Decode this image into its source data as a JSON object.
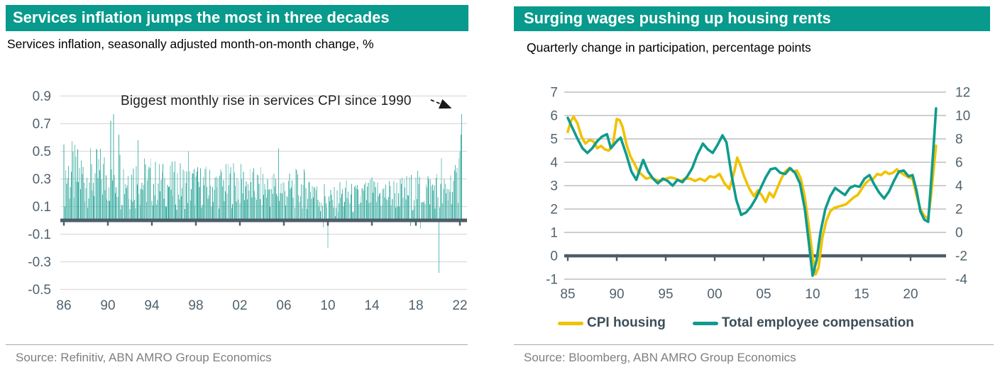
{
  "left_panel": {
    "title": "Services inflation jumps the most in three decades",
    "subtitle": "Services inflation, seasonally adjusted month-on-month change, %",
    "annotation": "Biggest monthly rise in services CPI since 1990",
    "source": "Source: Refinitiv, ABN AMRO Group Economics"
  },
  "right_panel": {
    "title": "Surging wages pushing up housing rents",
    "subtitle": "Quarterly change in participation, percentage points",
    "source": "Source: Bloomberg, ABN AMRO Group Economics"
  },
  "colors": {
    "accent_teal": "#089a8c",
    "bar_teal": "#2da79b",
    "line_teal": "#0f9b8e",
    "line_yellow": "#f0c200",
    "axis_dark": "#4d5d69",
    "tick_label": "#50626e",
    "grid_light": "#dcdcdc",
    "grid_medium": "#9c9c9c",
    "annotation_ink": "#1a1a1a"
  },
  "chart_data": [
    {
      "id": "services-inflation",
      "type": "bar",
      "title": "Services inflation jumps the most in three decades",
      "ylabel": "Services inflation, seasonally adjusted month-on-month change, %",
      "x_tick_labels": [
        "86",
        "90",
        "94",
        "98",
        "02",
        "06",
        "10",
        "14",
        "18",
        "22"
      ],
      "x_tick_years": [
        1986,
        1990,
        1994,
        1998,
        2002,
        2006,
        2010,
        2014,
        2018,
        2022
      ],
      "y_ticks": [
        0.9,
        0.7,
        0.5,
        0.3,
        0.1,
        -0.1,
        -0.3,
        -0.5
      ],
      "ylim": [
        -0.5,
        0.95
      ],
      "x_range_years": [
        1986.0,
        2022.25
      ],
      "frequency": "monthly",
      "bars_envelope_per_year": [
        [
          1986,
          0.32,
          0.26
        ],
        [
          1987,
          0.3,
          0.24
        ],
        [
          1988,
          0.3,
          0.22
        ],
        [
          1989,
          0.31,
          0.23
        ],
        [
          1990,
          0.33,
          0.26
        ],
        [
          1991,
          0.31,
          0.25
        ],
        [
          1992,
          0.28,
          0.22
        ],
        [
          1993,
          0.27,
          0.2
        ],
        [
          1994,
          0.26,
          0.18
        ],
        [
          1995,
          0.25,
          0.17
        ],
        [
          1996,
          0.25,
          0.18
        ],
        [
          1997,
          0.24,
          0.17
        ],
        [
          1998,
          0.24,
          0.16
        ],
        [
          1999,
          0.23,
          0.16
        ],
        [
          2000,
          0.24,
          0.17
        ],
        [
          2001,
          0.26,
          0.18
        ],
        [
          2002,
          0.25,
          0.16
        ],
        [
          2003,
          0.23,
          0.15
        ],
        [
          2004,
          0.22,
          0.15
        ],
        [
          2005,
          0.22,
          0.16
        ],
        [
          2006,
          0.21,
          0.14
        ],
        [
          2007,
          0.22,
          0.15
        ],
        [
          2008,
          0.23,
          0.16
        ],
        [
          2009,
          0.16,
          0.13
        ],
        [
          2010,
          0.13,
          0.11
        ],
        [
          2011,
          0.17,
          0.13
        ],
        [
          2012,
          0.15,
          0.12
        ],
        [
          2013,
          0.17,
          0.13
        ],
        [
          2014,
          0.18,
          0.13
        ],
        [
          2015,
          0.18,
          0.13
        ],
        [
          2016,
          0.19,
          0.13
        ],
        [
          2017,
          0.2,
          0.14
        ],
        [
          2018,
          0.21,
          0.15
        ],
        [
          2019,
          0.22,
          0.15
        ],
        [
          2020,
          0.18,
          0.15
        ],
        [
          2021,
          0.25,
          0.15
        ],
        [
          2022,
          0.42,
          0.18
        ]
      ],
      "notable_points": [
        [
          1990.25,
          0.72
        ],
        [
          1990.5,
          0.77
        ],
        [
          1991.0,
          0.62
        ],
        [
          1992.75,
          0.58
        ],
        [
          1997.3,
          0.5
        ],
        [
          2005.5,
          0.52
        ],
        [
          2009.6,
          -0.05
        ],
        [
          2010.0,
          -0.2
        ],
        [
          2017.5,
          -0.04
        ],
        [
          2018.4,
          -0.06
        ],
        [
          2020.05,
          -0.38
        ],
        [
          2020.3,
          0.45
        ],
        [
          2021.75,
          0.38
        ],
        [
          2021.9,
          0.45
        ],
        [
          2022.0,
          0.5
        ],
        [
          2022.08,
          0.62
        ],
        [
          2022.17,
          0.77
        ]
      ],
      "annotation": {
        "text": "Biggest monthly rise in services CPI since 1990",
        "points_to": {
          "year": 2022.17,
          "value": 0.77
        }
      },
      "noise_seed": 12.9898
    },
    {
      "id": "wages-housing-rents",
      "type": "line",
      "title": "Surging wages pushing up housing rents",
      "ylabel": "Quarterly change in participation, percentage points",
      "x_tick_labels": [
        "85",
        "90",
        "95",
        "00",
        "05",
        "10",
        "15",
        "20"
      ],
      "x_tick_years": [
        1985,
        1990,
        1995,
        2000,
        2005,
        2010,
        2015,
        2020
      ],
      "y_left_ticks": [
        7,
        6,
        5,
        4,
        3,
        2,
        1,
        0,
        -1
      ],
      "y_right_ticks": [
        12,
        10,
        8,
        6,
        4,
        2,
        0,
        -2,
        -4
      ],
      "ylim_left": [
        -1,
        7
      ],
      "ylim_right": [
        -4,
        12
      ],
      "x_range_years": [
        1985.0,
        2022.6
      ],
      "legend_position": "bottom",
      "series": [
        {
          "name": "CPI housing",
          "axis": "left",
          "color": "#f0c200",
          "points": [
            [
              1985.0,
              5.3
            ],
            [
              1985.3,
              5.75
            ],
            [
              1985.6,
              5.95
            ],
            [
              1986.0,
              5.65
            ],
            [
              1986.4,
              5.1
            ],
            [
              1986.8,
              4.8
            ],
            [
              1987.2,
              4.95
            ],
            [
              1987.6,
              4.9
            ],
            [
              1988.0,
              4.6
            ],
            [
              1988.4,
              4.7
            ],
            [
              1988.8,
              4.55
            ],
            [
              1989.2,
              4.5
            ],
            [
              1989.6,
              4.75
            ],
            [
              1990.0,
              5.85
            ],
            [
              1990.3,
              5.8
            ],
            [
              1990.6,
              5.5
            ],
            [
              1991.0,
              4.75
            ],
            [
              1991.4,
              4.25
            ],
            [
              1991.8,
              3.95
            ],
            [
              1992.2,
              3.6
            ],
            [
              1992.6,
              3.45
            ],
            [
              1993.0,
              3.3
            ],
            [
              1993.5,
              3.35
            ],
            [
              1994.0,
              3.25
            ],
            [
              1994.5,
              3.2
            ],
            [
              1995.0,
              3.3
            ],
            [
              1995.5,
              3.35
            ],
            [
              1996.0,
              3.3
            ],
            [
              1996.5,
              3.2
            ],
            [
              1997.0,
              3.3
            ],
            [
              1997.5,
              3.3
            ],
            [
              1998.0,
              3.2
            ],
            [
              1998.5,
              3.3
            ],
            [
              1999.0,
              3.2
            ],
            [
              1999.5,
              3.4
            ],
            [
              2000.0,
              3.35
            ],
            [
              2000.5,
              3.5
            ],
            [
              2001.0,
              3.1
            ],
            [
              2001.5,
              2.85
            ],
            [
              2002.0,
              3.6
            ],
            [
              2002.3,
              4.2
            ],
            [
              2002.6,
              3.9
            ],
            [
              2003.0,
              3.4
            ],
            [
              2003.5,
              2.9
            ],
            [
              2004.0,
              2.55
            ],
            [
              2004.4,
              2.8
            ],
            [
              2004.8,
              2.6
            ],
            [
              2005.2,
              2.3
            ],
            [
              2005.6,
              2.7
            ],
            [
              2006.0,
              2.5
            ],
            [
              2006.4,
              2.9
            ],
            [
              2006.8,
              3.3
            ],
            [
              2007.2,
              3.6
            ],
            [
              2007.6,
              3.75
            ],
            [
              2008.0,
              3.6
            ],
            [
              2008.4,
              3.65
            ],
            [
              2008.8,
              3.3
            ],
            [
              2009.2,
              2.5
            ],
            [
              2009.6,
              1.3
            ],
            [
              2010.0,
              0.0
            ],
            [
              2010.3,
              -0.8
            ],
            [
              2010.6,
              -0.5
            ],
            [
              2011.0,
              0.8
            ],
            [
              2011.4,
              1.5
            ],
            [
              2011.8,
              1.9
            ],
            [
              2012.2,
              2.05
            ],
            [
              2012.6,
              2.1
            ],
            [
              2013.0,
              2.15
            ],
            [
              2013.4,
              2.2
            ],
            [
              2013.8,
              2.35
            ],
            [
              2014.2,
              2.5
            ],
            [
              2014.6,
              2.6
            ],
            [
              2015.0,
              2.85
            ],
            [
              2015.4,
              3.1
            ],
            [
              2015.8,
              3.25
            ],
            [
              2016.2,
              3.3
            ],
            [
              2016.6,
              3.5
            ],
            [
              2017.0,
              3.45
            ],
            [
              2017.4,
              3.6
            ],
            [
              2017.8,
              3.5
            ],
            [
              2018.2,
              3.55
            ],
            [
              2018.6,
              3.7
            ],
            [
              2019.0,
              3.55
            ],
            [
              2019.4,
              3.45
            ],
            [
              2019.8,
              3.35
            ],
            [
              2020.2,
              3.3
            ],
            [
              2020.6,
              2.6
            ],
            [
              2021.0,
              2.0
            ],
            [
              2021.4,
              1.7
            ],
            [
              2021.8,
              1.6
            ],
            [
              2022.1,
              2.6
            ],
            [
              2022.4,
              3.9
            ],
            [
              2022.6,
              4.7
            ]
          ]
        },
        {
          "name": "Total employee compensation",
          "axis": "left",
          "color": "#0f9b8e",
          "points": [
            [
              1985.0,
              5.9
            ],
            [
              1985.5,
              5.45
            ],
            [
              1986.0,
              5.0
            ],
            [
              1986.5,
              4.6
            ],
            [
              1987.0,
              4.4
            ],
            [
              1987.5,
              4.6
            ],
            [
              1988.0,
              4.9
            ],
            [
              1988.5,
              5.1
            ],
            [
              1989.0,
              5.2
            ],
            [
              1989.4,
              4.6
            ],
            [
              1990.0,
              4.9
            ],
            [
              1990.4,
              5.05
            ],
            [
              1991.0,
              4.3
            ],
            [
              1991.5,
              3.6
            ],
            [
              1992.0,
              3.25
            ],
            [
              1992.4,
              3.75
            ],
            [
              1992.7,
              4.1
            ],
            [
              1993.2,
              3.6
            ],
            [
              1993.7,
              3.3
            ],
            [
              1994.2,
              3.1
            ],
            [
              1994.7,
              3.3
            ],
            [
              1995.2,
              3.2
            ],
            [
              1995.7,
              3.0
            ],
            [
              1996.2,
              3.25
            ],
            [
              1996.7,
              3.15
            ],
            [
              1997.2,
              3.4
            ],
            [
              1997.7,
              3.75
            ],
            [
              1998.2,
              4.3
            ],
            [
              1998.8,
              4.8
            ],
            [
              1999.3,
              4.55
            ],
            [
              1999.8,
              4.4
            ],
            [
              2000.3,
              4.75
            ],
            [
              2000.8,
              5.15
            ],
            [
              2001.2,
              4.85
            ],
            [
              2001.7,
              3.5
            ],
            [
              2002.2,
              2.4
            ],
            [
              2002.7,
              1.75
            ],
            [
              2003.2,
              1.85
            ],
            [
              2003.7,
              2.1
            ],
            [
              2004.2,
              2.45
            ],
            [
              2004.7,
              2.9
            ],
            [
              2005.2,
              3.35
            ],
            [
              2005.7,
              3.7
            ],
            [
              2006.2,
              3.75
            ],
            [
              2006.7,
              3.55
            ],
            [
              2007.2,
              3.5
            ],
            [
              2007.7,
              3.75
            ],
            [
              2008.2,
              3.55
            ],
            [
              2008.7,
              3.1
            ],
            [
              2009.2,
              2.0
            ],
            [
              2009.6,
              0.6
            ],
            [
              2010.0,
              -0.85
            ],
            [
              2010.4,
              -0.2
            ],
            [
              2010.8,
              1.0
            ],
            [
              2011.3,
              2.0
            ],
            [
              2011.8,
              2.55
            ],
            [
              2012.3,
              2.9
            ],
            [
              2012.8,
              2.75
            ],
            [
              2013.3,
              2.6
            ],
            [
              2013.8,
              2.9
            ],
            [
              2014.3,
              3.0
            ],
            [
              2014.8,
              2.95
            ],
            [
              2015.3,
              3.3
            ],
            [
              2015.8,
              3.45
            ],
            [
              2016.3,
              3.05
            ],
            [
              2016.8,
              2.7
            ],
            [
              2017.3,
              2.45
            ],
            [
              2017.8,
              2.75
            ],
            [
              2018.3,
              3.2
            ],
            [
              2018.8,
              3.6
            ],
            [
              2019.3,
              3.65
            ],
            [
              2019.8,
              3.4
            ],
            [
              2020.2,
              3.45
            ],
            [
              2020.6,
              2.8
            ],
            [
              2021.0,
              1.9
            ],
            [
              2021.4,
              1.55
            ],
            [
              2021.8,
              1.45
            ],
            [
              2022.1,
              3.2
            ],
            [
              2022.4,
              5.0
            ],
            [
              2022.6,
              6.3
            ]
          ]
        }
      ]
    }
  ]
}
